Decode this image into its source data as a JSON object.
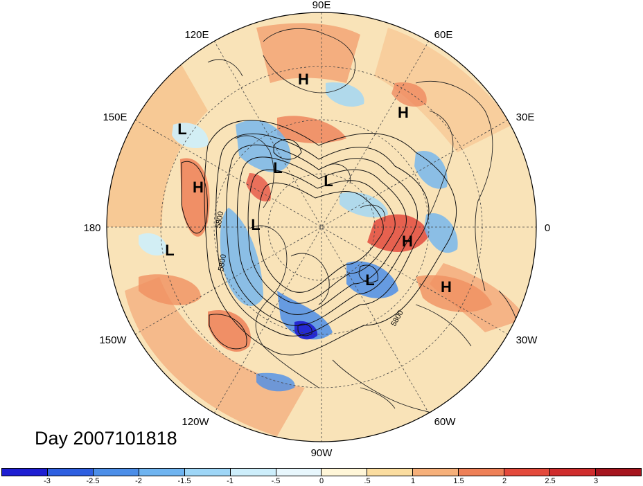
{
  "map": {
    "date_label": "Day 2007101818",
    "longitude_labels": [
      "90E",
      "60E",
      "30E",
      "0",
      "30W",
      "60W",
      "90W",
      "120W",
      "150W",
      "180",
      "150E",
      "120E"
    ],
    "contour_labels": [
      "5800",
      "5800",
      "5800",
      "5800"
    ],
    "centers": [
      {
        "type": "H"
      },
      {
        "type": "H"
      },
      {
        "type": "L"
      },
      {
        "type": "H"
      },
      {
        "type": "L"
      },
      {
        "type": "L"
      },
      {
        "type": "L"
      },
      {
        "type": "L"
      },
      {
        "type": "H"
      },
      {
        "type": "L"
      },
      {
        "type": "H"
      }
    ]
  },
  "colorbar": {
    "ticks": [
      "-3",
      "-2.5",
      "-2",
      "-1.5",
      "-1",
      "-.5",
      "0",
      ".5",
      "1",
      "1.5",
      "2",
      "2.5",
      "3"
    ],
    "colors": [
      "#1e1ed2",
      "#2e5fe0",
      "#4c8ee8",
      "#6fb4f0",
      "#9ed6f7",
      "#cdeefb",
      "#e8f7fd",
      "#fff6d8",
      "#fbdda0",
      "#f6b07a",
      "#ee8057",
      "#e34a3c",
      "#cf2d2d",
      "#a5151e"
    ]
  }
}
